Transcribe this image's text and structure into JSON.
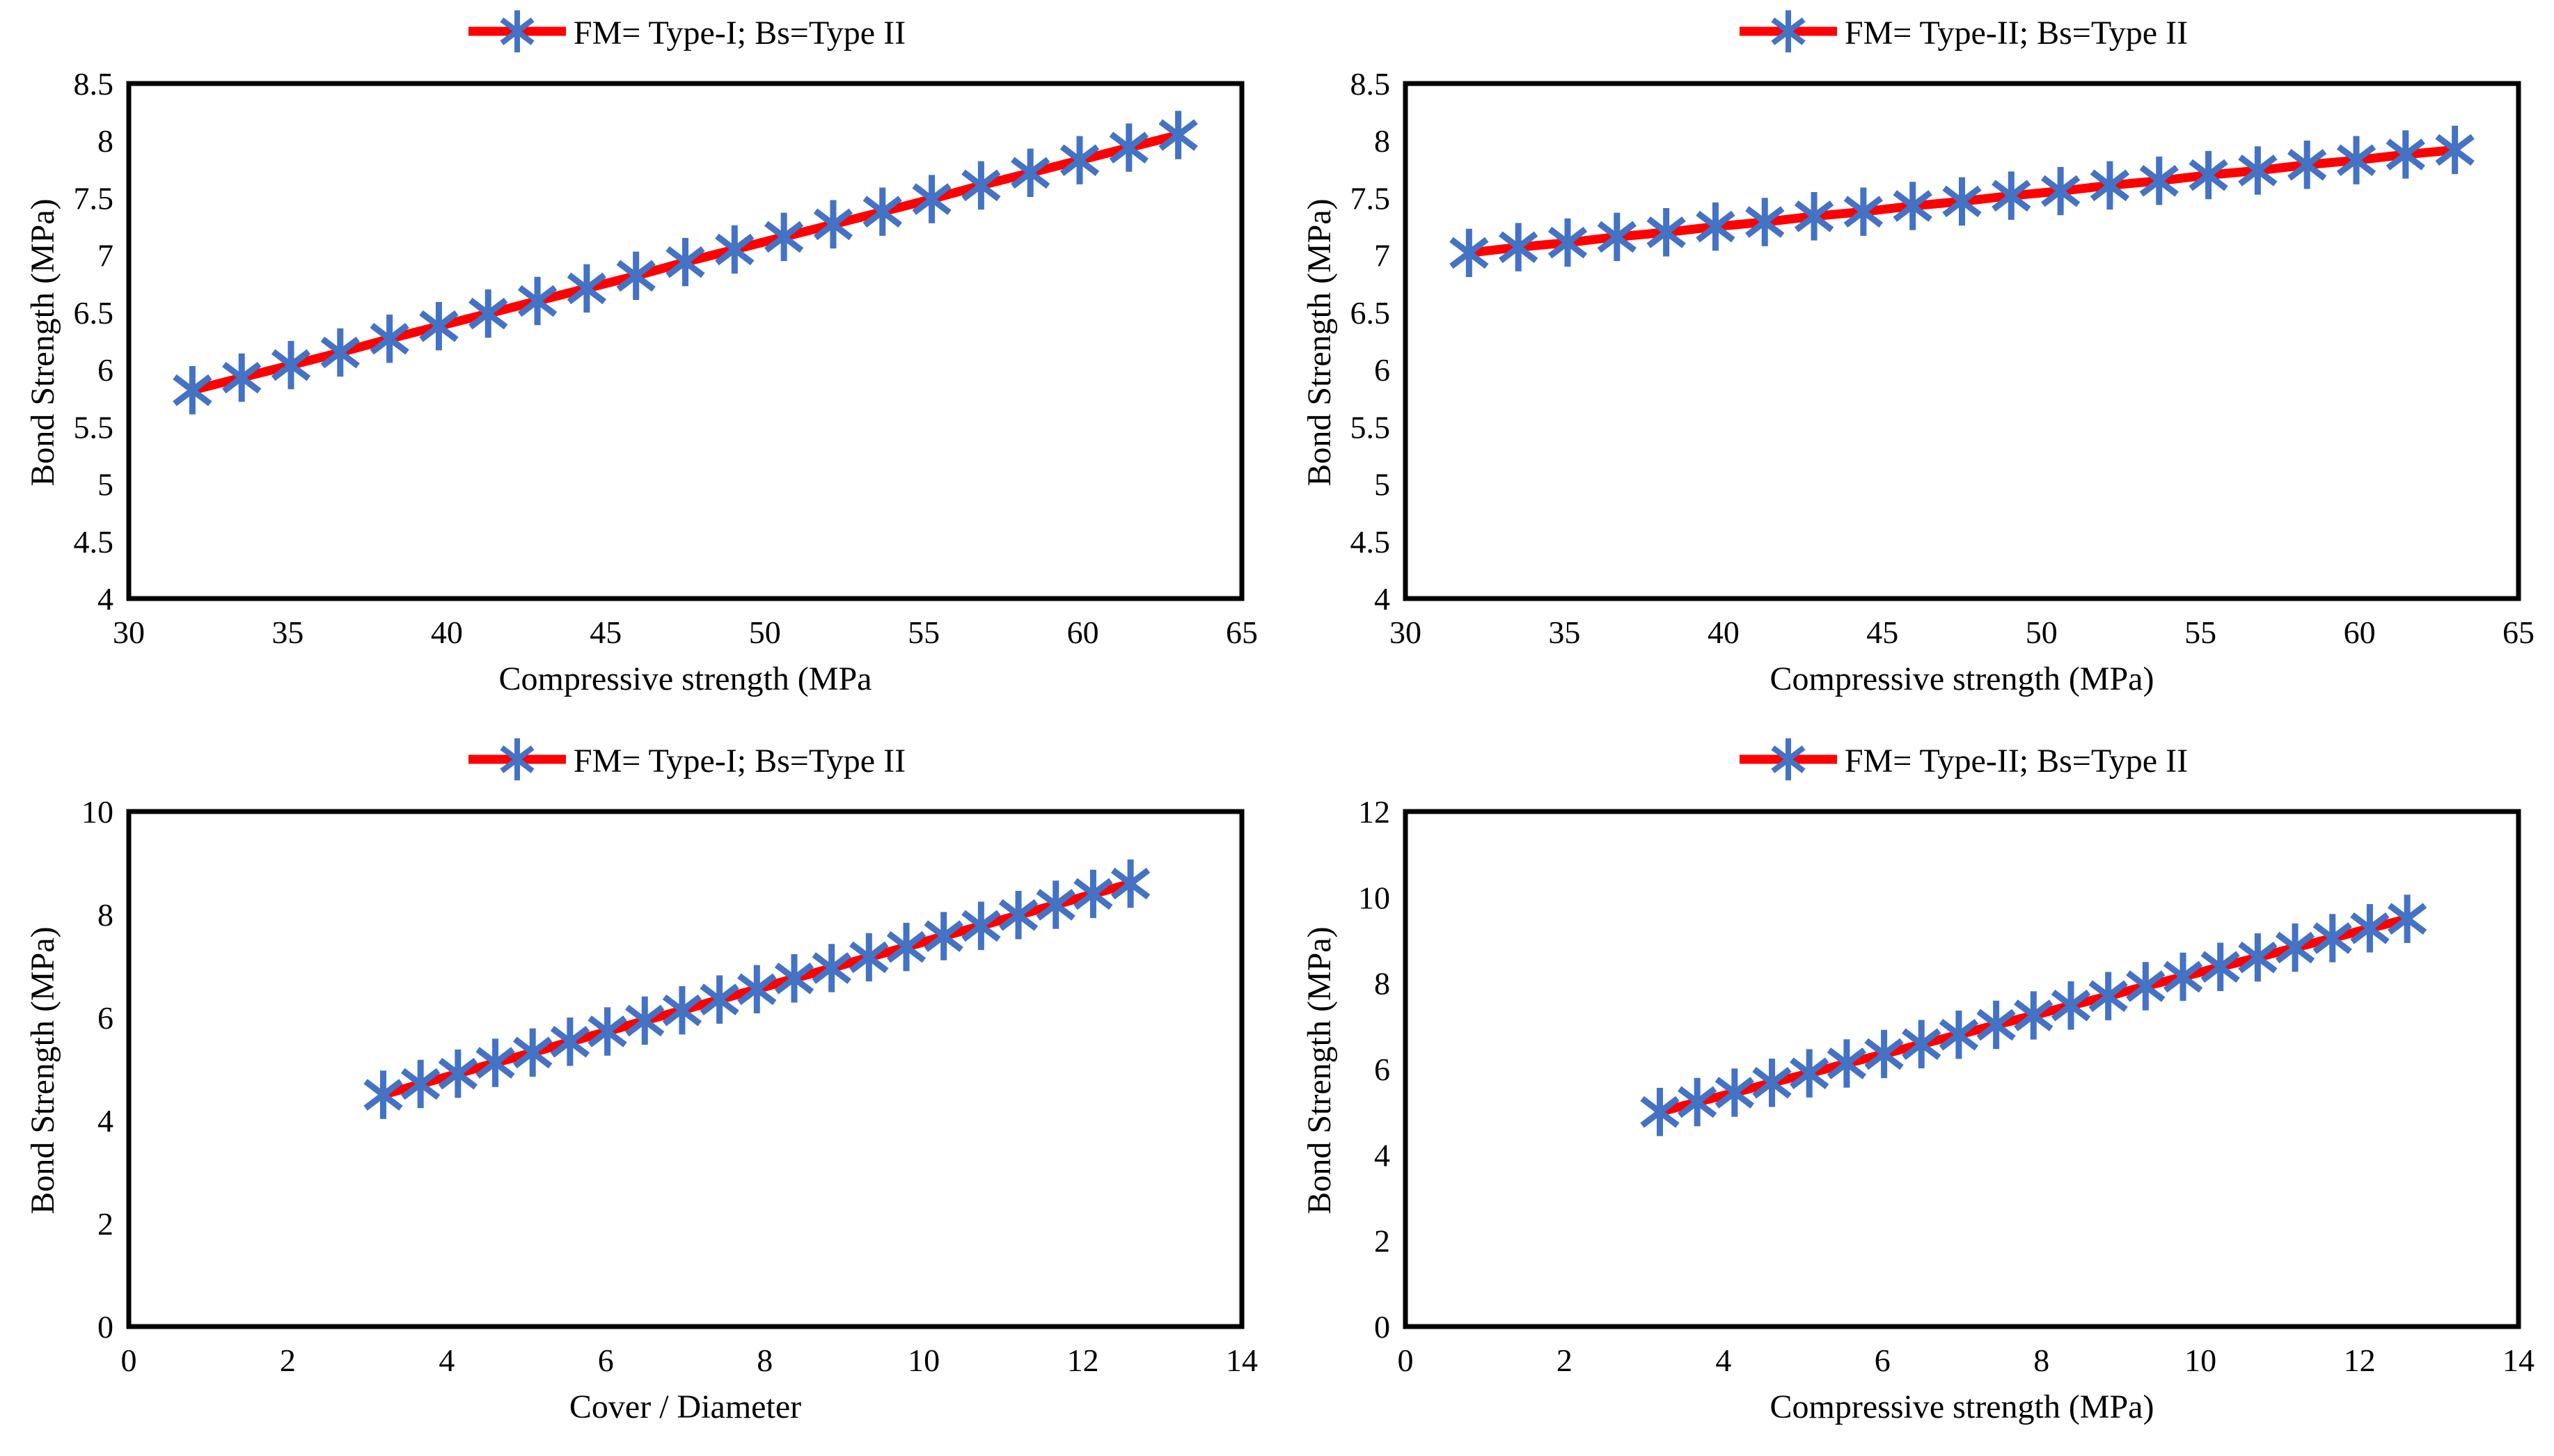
{
  "figure": {
    "background": "#ffffff",
    "description_visible_text_only": true
  },
  "colors": {
    "line": "#ff0000",
    "marker": "#4472c4",
    "axis": "#000000",
    "text": "#000000"
  },
  "chart_data": [
    {
      "id": "top-left",
      "type": "line",
      "legend": "FM= Type-I; Bs=Type II",
      "legend_position": "top",
      "xlabel": "Compressive strength (MPa",
      "ylabel": "Bond Strength (MPa)",
      "xlim": [
        30,
        65
      ],
      "ylim": [
        4,
        8.5
      ],
      "xticks": [
        "30",
        "35",
        "40",
        "45",
        "50",
        "55",
        "60",
        "65"
      ],
      "yticks": [
        "4",
        "4.5",
        "5",
        "5.5",
        "6",
        "6.5",
        "7",
        "7.5",
        "8",
        "8.5"
      ],
      "grid": false,
      "x": [
        32,
        33.55,
        35.1,
        36.65,
        38.2,
        39.75,
        41.3,
        42.85,
        44.4,
        45.95,
        47.5,
        49.05,
        50.6,
        52.15,
        53.7,
        55.25,
        56.8,
        58.35,
        59.9,
        61.45,
        63
      ],
      "y": [
        5.82,
        5.93,
        6.04,
        6.15,
        6.27,
        6.38,
        6.49,
        6.6,
        6.71,
        6.82,
        6.94,
        7.05,
        7.16,
        7.27,
        7.38,
        7.49,
        7.61,
        7.72,
        7.83,
        7.94,
        8.05
      ]
    },
    {
      "id": "top-right",
      "type": "line",
      "legend": "FM= Type-II; Bs=Type II",
      "legend_position": "top",
      "xlabel": "Compressive strength (MPa)",
      "ylabel": "Bond Strength (MPa)",
      "xlim": [
        30,
        65
      ],
      "ylim": [
        4,
        8.5
      ],
      "xticks": [
        "30",
        "35",
        "40",
        "45",
        "50",
        "55",
        "60",
        "65"
      ],
      "yticks": [
        "4",
        "4.5",
        "5",
        "5.5",
        "6",
        "6.5",
        "7",
        "7.5",
        "8",
        "8.5"
      ],
      "grid": false,
      "x": [
        32,
        33.55,
        35.1,
        36.65,
        38.2,
        39.75,
        41.3,
        42.85,
        44.4,
        45.95,
        47.5,
        49.05,
        50.6,
        52.15,
        53.7,
        55.25,
        56.8,
        58.35,
        59.9,
        61.45,
        63
      ],
      "y": [
        7.02,
        7.07,
        7.11,
        7.16,
        7.2,
        7.25,
        7.29,
        7.34,
        7.38,
        7.43,
        7.47,
        7.52,
        7.56,
        7.61,
        7.65,
        7.7,
        7.74,
        7.79,
        7.83,
        7.88,
        7.92
      ]
    },
    {
      "id": "bottom-left",
      "type": "line",
      "legend": "FM= Type-I; Bs=Type II",
      "legend_position": "top",
      "xlabel": "Cover / Diameter",
      "ylabel": "Bond Strength (MPa)",
      "xlim": [
        0,
        14
      ],
      "ylim": [
        0,
        10
      ],
      "xticks": [
        "0",
        "2",
        "4",
        "6",
        "8",
        "10",
        "12",
        "14"
      ],
      "yticks": [
        "0",
        "2",
        "4",
        "6",
        "8",
        "10"
      ],
      "grid": false,
      "x": [
        3.2,
        3.67,
        4.14,
        4.61,
        5.08,
        5.55,
        6.02,
        6.49,
        6.96,
        7.43,
        7.9,
        8.37,
        8.84,
        9.31,
        9.78,
        10.25,
        10.72,
        11.19,
        11.66,
        12.13,
        12.6
      ],
      "y": [
        4.5,
        4.71,
        4.91,
        5.12,
        5.32,
        5.53,
        5.73,
        5.94,
        6.14,
        6.35,
        6.55,
        6.76,
        6.96,
        7.17,
        7.37,
        7.58,
        7.78,
        7.99,
        8.19,
        8.4,
        8.6
      ]
    },
    {
      "id": "bottom-right",
      "type": "line",
      "legend": "FM= Type-II; Bs=Type II",
      "legend_position": "top",
      "xlabel": "Compressive strength (MPa)",
      "ylabel": "Bond Strength (MPa)",
      "xlim": [
        0,
        14
      ],
      "ylim": [
        0,
        12
      ],
      "xticks": [
        "0",
        "2",
        "4",
        "6",
        "8",
        "10",
        "12",
        "14"
      ],
      "yticks": [
        "0",
        "2",
        "4",
        "6",
        "8",
        "10",
        "12"
      ],
      "grid": false,
      "x": [
        3.2,
        3.67,
        4.14,
        4.61,
        5.08,
        5.55,
        6.02,
        6.49,
        6.96,
        7.43,
        7.9,
        8.37,
        8.84,
        9.31,
        9.78,
        10.25,
        10.72,
        11.19,
        11.66,
        12.13,
        12.6
      ],
      "y": [
        5,
        5.23,
        5.45,
        5.68,
        5.9,
        6.13,
        6.35,
        6.58,
        6.8,
        7.03,
        7.25,
        7.48,
        7.7,
        7.93,
        8.15,
        8.38,
        8.6,
        8.83,
        9.05,
        9.28,
        9.5
      ]
    }
  ]
}
